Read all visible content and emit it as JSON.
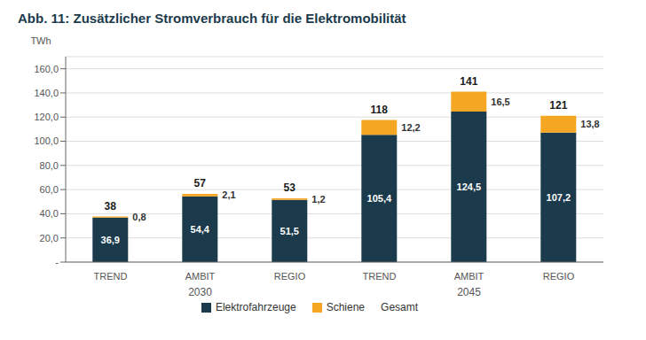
{
  "chart_data": {
    "type": "bar",
    "title": "Abb. 11:  Zusätzlicher Stromverbrauch für die Elektromobilität",
    "y_label": "TWh",
    "categories": [
      "TREND",
      "AMBIT",
      "REGIO",
      "TREND",
      "AMBIT",
      "REGIO"
    ],
    "x_groups": [
      "2030",
      "2030",
      "2030",
      "2045",
      "2045",
      "2045"
    ],
    "series": [
      {
        "name": "Elektrofahrzeuge",
        "color": "#1b3a4b",
        "values": [
          36.9,
          54.4,
          51.5,
          105.4,
          124.5,
          107.2
        ],
        "value_labels": [
          "36,9",
          "54,4",
          "51,5",
          "105,4",
          "124,5",
          "107,2"
        ]
      },
      {
        "name": "Schiene",
        "color": "#f5a623",
        "values": [
          0.8,
          2.1,
          1.2,
          12.2,
          16.5,
          13.8
        ],
        "value_labels": [
          "0,8",
          "2,1",
          "1,2",
          "12,2",
          "16,5",
          "13,8"
        ]
      }
    ],
    "totals": {
      "name": "Gesamt",
      "values": [
        38,
        57,
        53,
        118,
        141,
        121
      ]
    },
    "stacked": true,
    "data_labels": true,
    "grid": true,
    "legend": "bottom",
    "ylim": [
      0,
      170
    ],
    "yticks": [
      {
        "value": 0,
        "label": "-"
      },
      {
        "value": 20,
        "label": "20,0"
      },
      {
        "value": 40,
        "label": "40,0"
      },
      {
        "value": 60,
        "label": "60,0"
      },
      {
        "value": 80,
        "label": "80,0"
      },
      {
        "value": 100,
        "label": "100,0"
      },
      {
        "value": 120,
        "label": "120,0"
      },
      {
        "value": 140,
        "label": "140,0"
      },
      {
        "value": 160,
        "label": "160,0"
      }
    ]
  }
}
